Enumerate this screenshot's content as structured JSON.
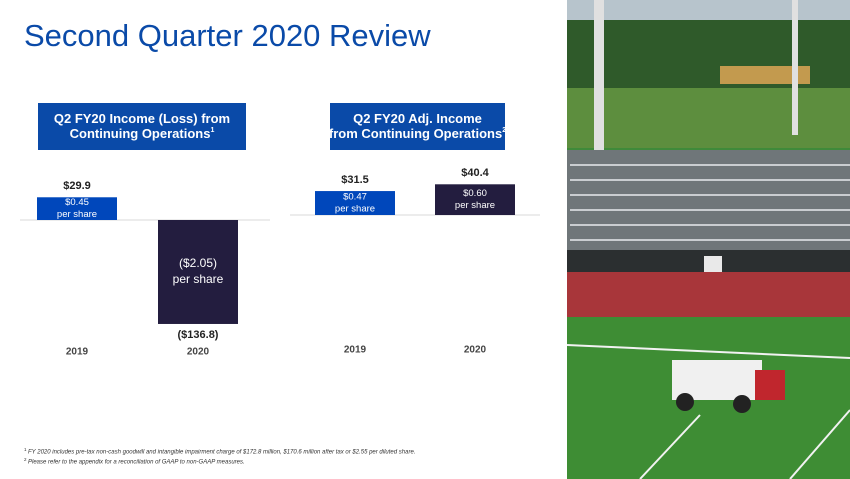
{
  "title": "Second Quarter 2020 Review",
  "chart_data": [
    {
      "type": "bar",
      "title": "Q2 FY20 Income (Loss) from Continuing Operations",
      "title_note": "1",
      "categories": [
        "2019",
        "2020"
      ],
      "values": [
        29.9,
        -136.8
      ],
      "value_labels": [
        "$29.9",
        "($136.8)"
      ],
      "eps_labels": [
        "$0.45",
        "($2.05)"
      ],
      "eps_suffix": "per share",
      "colors": [
        "#0047bb",
        "#231d3f"
      ]
    },
    {
      "type": "bar",
      "title": "Q2 FY20 Adj. Income from Continuing Operations",
      "title_note": "2",
      "categories": [
        "2019",
        "2020"
      ],
      "values": [
        31.5,
        40.4
      ],
      "value_labels": [
        "$31.5",
        "$40.4"
      ],
      "eps_labels": [
        "$0.47",
        "$0.60"
      ],
      "eps_suffix": "per share",
      "colors": [
        "#0047bb",
        "#231d3f"
      ]
    }
  ],
  "footnotes": [
    {
      "mark": "1",
      "text": "FY 2020 includes pre-tax non-cash goodwill and intangible impairment charge of $172.8 million, $170.6 million after tax or $2.55 per diluted share."
    },
    {
      "mark": "2",
      "text": "Please refer to the appendix for a reconciliation of GAAP to non-GAAP measures."
    }
  ]
}
